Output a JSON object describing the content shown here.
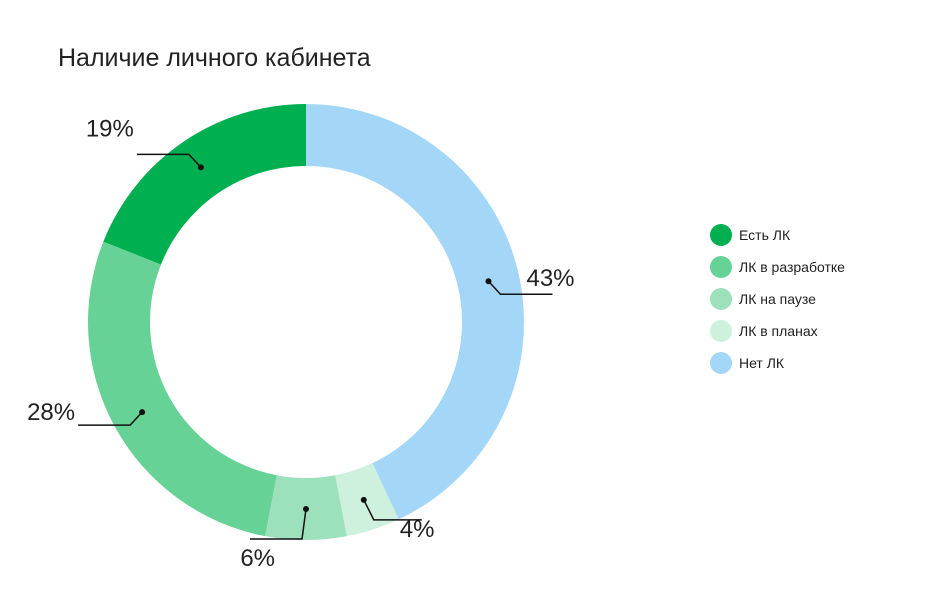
{
  "chart_data": {
    "type": "pie",
    "variant": "donut",
    "title": "Наличие личного кабинета",
    "categories": [
      "Есть ЛК",
      "ЛК в разработке",
      "ЛК на паузе",
      "ЛК в планах",
      "Нет ЛК"
    ],
    "values": [
      19,
      28,
      6,
      4,
      43
    ],
    "value_labels": [
      "19%",
      "28%",
      "6%",
      "4%",
      "43%"
    ],
    "unit": "%",
    "colors": [
      "#00b050",
      "#66d296",
      "#9ce0bc",
      "#cdf1dd",
      "#a4d7f7"
    ],
    "legend_position": "right",
    "start": "top",
    "direction": "clockwise"
  }
}
